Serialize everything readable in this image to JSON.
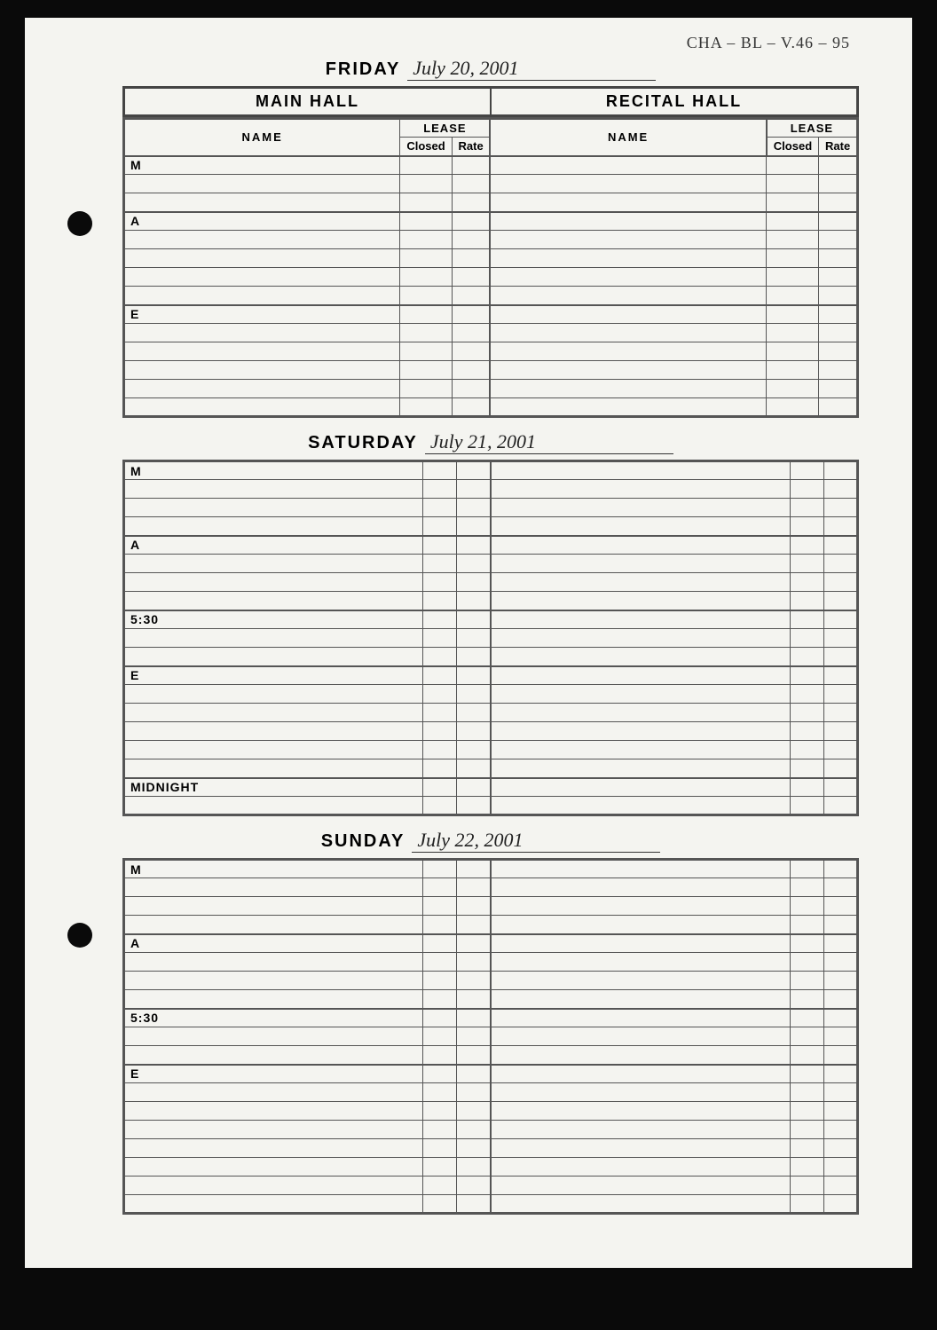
{
  "topReference": "CHA – BL – V.46 – 95",
  "halls": {
    "left": "MAIN HALL",
    "right": "RECITAL HALL"
  },
  "columnHeaders": {
    "name": "NAME",
    "lease": "LEASE",
    "closed": "Closed",
    "rate": "Rate"
  },
  "days": [
    {
      "label": "FRIDAY",
      "date": "July 20, 2001",
      "showHallHeader": true,
      "showColumnHeaders": true,
      "sections": [
        {
          "label": "M",
          "rows": 2
        },
        {
          "label": "A",
          "rows": 4
        },
        {
          "label": "E",
          "rows": 5
        }
      ]
    },
    {
      "label": "SATURDAY",
      "date": "July 21, 2001",
      "showHallHeader": false,
      "showColumnHeaders": false,
      "sections": [
        {
          "label": "M",
          "rows": 3
        },
        {
          "label": "A",
          "rows": 3
        },
        {
          "label": "5:30",
          "rows": 2
        },
        {
          "label": "E",
          "rows": 5
        },
        {
          "label": "MIDNIGHT",
          "rows": 1
        }
      ]
    },
    {
      "label": "SUNDAY",
      "date": "July 22, 2001",
      "showHallHeader": false,
      "showColumnHeaders": false,
      "sections": [
        {
          "label": "M",
          "rows": 3
        },
        {
          "label": "A",
          "rows": 3
        },
        {
          "label": "5:30",
          "rows": 2
        },
        {
          "label": "E",
          "rows": 7
        }
      ]
    }
  ]
}
